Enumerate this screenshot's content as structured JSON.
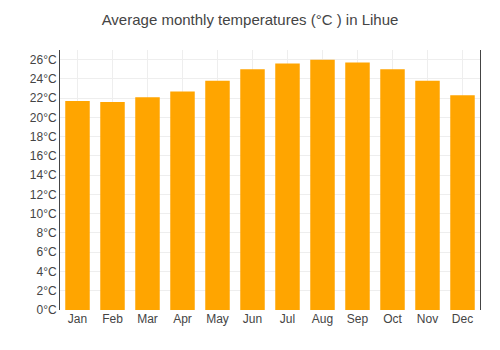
{
  "chart_data": {
    "type": "bar",
    "title": "Average monthly temperatures (°C ) in Lihue",
    "categories": [
      "Jan",
      "Feb",
      "Mar",
      "Apr",
      "May",
      "Jun",
      "Jul",
      "Aug",
      "Sep",
      "Oct",
      "Nov",
      "Dec"
    ],
    "values": [
      21.7,
      21.6,
      22.1,
      22.7,
      23.8,
      25.0,
      25.6,
      26.0,
      25.7,
      25.0,
      23.8,
      22.3
    ],
    "color": "#FFA500",
    "ylim": [
      0,
      27
    ],
    "yticks": [
      {
        "value": 0,
        "label": "0°C"
      },
      {
        "value": 2,
        "label": "2°C"
      },
      {
        "value": 4,
        "label": "4°C"
      },
      {
        "value": 6,
        "label": "6°C"
      },
      {
        "value": 8,
        "label": "8°C"
      },
      {
        "value": 10,
        "label": "10°C"
      },
      {
        "value": 12,
        "label": "12°C"
      },
      {
        "value": 14,
        "label": "14°C"
      },
      {
        "value": 16,
        "label": "16°C"
      },
      {
        "value": 18,
        "label": "18°C"
      },
      {
        "value": 20,
        "label": "20°C"
      },
      {
        "value": 22,
        "label": "22°C"
      },
      {
        "value": 24,
        "label": "24°C"
      },
      {
        "value": 26,
        "label": "26°C"
      }
    ],
    "grid": true
  }
}
